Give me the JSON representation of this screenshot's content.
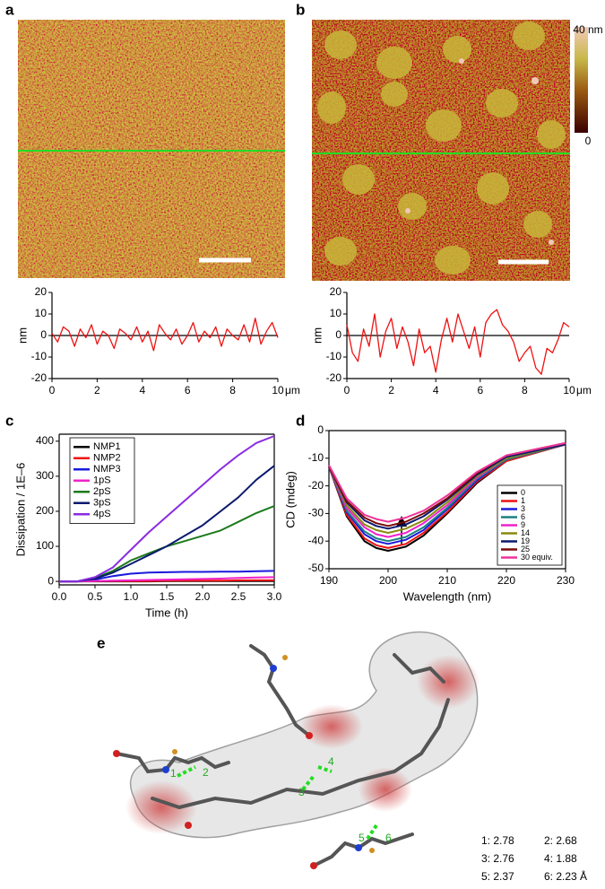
{
  "panel_labels": [
    "a",
    "b",
    "c",
    "d",
    "e"
  ],
  "colorbar": {
    "top_label": "40 nm",
    "bottom_label": "0"
  },
  "panel_e": {
    "hbond_labels": [
      "1",
      "2",
      "3",
      "4",
      "5",
      "6"
    ],
    "distances": [
      "1: 2.78",
      "2: 2.68",
      "3: 2.76",
      "4: 1.88",
      "5: 2.37",
      "6: 2.23 Å"
    ]
  },
  "chart_data": [
    {
      "type": "line",
      "ylabel": "nm",
      "x_unit": "μm",
      "xlim": [
        0,
        10
      ],
      "ylim": [
        -20,
        20
      ],
      "xticks": [
        0,
        2,
        4,
        6,
        8,
        10
      ],
      "yticks": [
        20,
        10,
        0,
        -10,
        -20
      ],
      "zero_line": true,
      "frame": false,
      "x": [
        0,
        0.25,
        0.5,
        0.75,
        1,
        1.25,
        1.5,
        1.75,
        2,
        2.25,
        2.5,
        2.75,
        3,
        3.25,
        3.5,
        3.75,
        4,
        4.25,
        4.5,
        4.75,
        5,
        5.25,
        5.5,
        5.75,
        6,
        6.25,
        6.5,
        6.75,
        7,
        7.25,
        7.5,
        7.75,
        8,
        8.25,
        8.5,
        8.75,
        9,
        9.25,
        9.5,
        9.75,
        10
      ],
      "series": [
        {
          "color": "#ee1111",
          "values": [
            1,
            -3,
            4,
            2,
            -5,
            3,
            -1,
            5,
            -4,
            2,
            0,
            -6,
            3,
            1,
            -2,
            4,
            -3,
            2,
            -7,
            5,
            1,
            -2,
            3,
            -4,
            0,
            6,
            -3,
            2,
            -1,
            4,
            -5,
            3,
            0,
            -2,
            5,
            -3,
            8,
            -4,
            2,
            6,
            -1
          ]
        }
      ]
    },
    {
      "type": "line",
      "ylabel": "nm",
      "x_unit": "μm",
      "xlim": [
        0,
        10
      ],
      "ylim": [
        -20,
        20
      ],
      "xticks": [
        0,
        2,
        4,
        6,
        8,
        10
      ],
      "yticks": [
        20,
        10,
        0,
        -10,
        -20
      ],
      "zero_line": true,
      "frame": false,
      "x": [
        0,
        0.25,
        0.5,
        0.75,
        1,
        1.25,
        1.5,
        1.75,
        2,
        2.25,
        2.5,
        2.75,
        3,
        3.25,
        3.5,
        3.75,
        4,
        4.25,
        4.5,
        4.75,
        5,
        5.25,
        5.5,
        5.75,
        6,
        6.25,
        6.5,
        6.75,
        7,
        7.25,
        7.5,
        7.75,
        8,
        8.25,
        8.5,
        8.75,
        9,
        9.25,
        9.5,
        9.75,
        10
      ],
      "series": [
        {
          "color": "#ee1111",
          "values": [
            5,
            -8,
            -12,
            3,
            -5,
            10,
            -10,
            2,
            8,
            -6,
            4,
            -3,
            -14,
            3,
            -8,
            -5,
            -17,
            -2,
            8,
            -3,
            10,
            2,
            -6,
            4,
            -10,
            6,
            10,
            12,
            5,
            2,
            -3,
            -12,
            -8,
            -5,
            -15,
            -18,
            -6,
            -8,
            -2,
            6,
            4
          ]
        }
      ]
    },
    {
      "type": "line",
      "xlabel": "Time (h)",
      "ylabel": "Dissipation / 1E–6",
      "xlim": [
        0,
        3
      ],
      "ylim": [
        -10,
        420
      ],
      "xticks": [
        {
          "value": 0,
          "label": "0.0"
        },
        {
          "value": 0.5,
          "label": "0.5"
        },
        {
          "value": 1,
          "label": "1.0"
        },
        {
          "value": 1.5,
          "label": "1.5"
        },
        {
          "value": 2,
          "label": "2.0"
        },
        {
          "value": 2.5,
          "label": "2.5"
        },
        {
          "value": 3,
          "label": "3.0"
        }
      ],
      "yticks": [
        0,
        100,
        200,
        300,
        400
      ],
      "legend": "upper left",
      "frame": true,
      "x": [
        0,
        0.25,
        0.5,
        0.75,
        1,
        1.25,
        1.5,
        1.75,
        2,
        2.25,
        2.5,
        2.75,
        3
      ],
      "series": [
        {
          "name": "NMP1",
          "color": "#000000",
          "values": [
            0,
            0,
            0,
            0,
            0,
            0,
            1,
            1,
            1,
            1,
            1,
            1,
            1
          ]
        },
        {
          "name": "NMP2",
          "color": "#ee1111",
          "values": [
            0,
            0,
            1,
            1,
            1,
            1,
            2,
            2,
            2,
            2,
            3,
            3,
            3
          ]
        },
        {
          "name": "NMP3",
          "color": "#1a1adc",
          "values": [
            0,
            0,
            5,
            15,
            22,
            25,
            26,
            27,
            27,
            28,
            28,
            29,
            30
          ]
        },
        {
          "name": "1pS",
          "color": "#ee22cc",
          "values": [
            0,
            0,
            1,
            2,
            3,
            4,
            5,
            6,
            7,
            8,
            10,
            11,
            12
          ]
        },
        {
          "name": "2pS",
          "color": "#1d7a1d",
          "values": [
            0,
            0,
            10,
            30,
            60,
            80,
            100,
            115,
            130,
            145,
            170,
            195,
            215
          ]
        },
        {
          "name": "3pS",
          "color": "#0b1a6e",
          "values": [
            0,
            0,
            8,
            25,
            50,
            75,
            100,
            130,
            160,
            200,
            240,
            290,
            330
          ]
        },
        {
          "name": "4pS",
          "color": "#8a2be2",
          "values": [
            0,
            0,
            12,
            40,
            90,
            140,
            185,
            230,
            275,
            320,
            360,
            395,
            415
          ]
        }
      ]
    },
    {
      "type": "line",
      "xlabel": "Wavelength (nm)",
      "ylabel": "CD (mdeg)",
      "xlim": [
        190,
        230
      ],
      "ylim": [
        -50,
        0
      ],
      "xticks": [
        190,
        200,
        210,
        220,
        230
      ],
      "yticks": [
        0,
        -10,
        -20,
        -30,
        -40,
        -50
      ],
      "legend": "lower right",
      "frame": true,
      "x": [
        190,
        193,
        196,
        198,
        200,
        203,
        206,
        210,
        215,
        220,
        230
      ],
      "series": [
        {
          "name": "0",
          "color": "#000000",
          "values": [
            -13,
            -31,
            -40,
            -42.5,
            -43.5,
            -42,
            -38,
            -30,
            -19,
            -11,
            -5
          ]
        },
        {
          "name": "1",
          "color": "#ee1111",
          "values": [
            -13,
            -30.5,
            -39,
            -41.5,
            -42.5,
            -41,
            -37,
            -29.5,
            -18.5,
            -11,
            -5
          ]
        },
        {
          "name": "3",
          "color": "#1a1adc",
          "values": [
            -13,
            -29.5,
            -37.5,
            -40,
            -41,
            -39.5,
            -36,
            -28.5,
            -18,
            -10.5,
            -5
          ]
        },
        {
          "name": "6",
          "color": "#1a8080",
          "values": [
            -13,
            -29,
            -36.5,
            -39,
            -40,
            -38.5,
            -35,
            -28,
            -17.5,
            -10.5,
            -5
          ]
        },
        {
          "name": "9",
          "color": "#ee22cc",
          "values": [
            -13,
            -28,
            -35,
            -37.5,
            -38.5,
            -37,
            -33.5,
            -27,
            -17,
            -10,
            -5
          ]
        },
        {
          "name": "14",
          "color": "#8a8a10",
          "values": [
            -13,
            -27,
            -34,
            -36,
            -37,
            -35.5,
            -32.5,
            -26,
            -16.5,
            -10,
            -5
          ]
        },
        {
          "name": "19",
          "color": "#0b1a6e",
          "values": [
            -13,
            -26,
            -32.5,
            -34.5,
            -35.5,
            -34,
            -31,
            -25,
            -16,
            -9.5,
            -5
          ]
        },
        {
          "name": "25",
          "color": "#7a0a0a",
          "values": [
            -13,
            -25.5,
            -31.5,
            -33.5,
            -34.5,
            -33,
            -30,
            -24.5,
            -15.5,
            -9,
            -4.5
          ]
        },
        {
          "name": "30 equiv.",
          "color": "#ee3399",
          "values": [
            -12.5,
            -24.5,
            -30.5,
            -32,
            -33,
            -31.5,
            -29,
            -23.5,
            -15,
            -9,
            -4.5
          ]
        }
      ]
    }
  ]
}
